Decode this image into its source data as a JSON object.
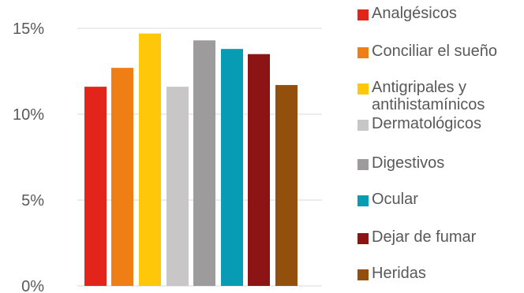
{
  "chart_data": {
    "type": "bar",
    "title": "",
    "xlabel": "",
    "ylabel": "",
    "ylim": [
      0,
      0.16
    ],
    "y_ticks": [
      "0%",
      "5%",
      "10%",
      "15%"
    ],
    "y_tick_values": [
      0,
      0.05,
      0.1,
      0.15
    ],
    "grid": true,
    "legend_position": "right",
    "series": [
      {
        "name": "Analgésicos",
        "value": 0.116,
        "color": "#e2241b"
      },
      {
        "name": "Conciliar el sueño",
        "value": 0.127,
        "color": "#ef7e14"
      },
      {
        "name": "Antigripales y antihistamínicos",
        "value": 0.147,
        "color": "#ffc709"
      },
      {
        "name": "Dermatológicos",
        "value": 0.116,
        "color": "#c8c6c6"
      },
      {
        "name": "Digestivos",
        "value": 0.143,
        "color": "#9d9b9c"
      },
      {
        "name": "Ocular",
        "value": 0.138,
        "color": "#079bb4"
      },
      {
        "name": "Dejar de fumar",
        "value": 0.135,
        "color": "#8c1414"
      },
      {
        "name": "Heridas",
        "value": 0.117,
        "color": "#93500d"
      }
    ]
  }
}
